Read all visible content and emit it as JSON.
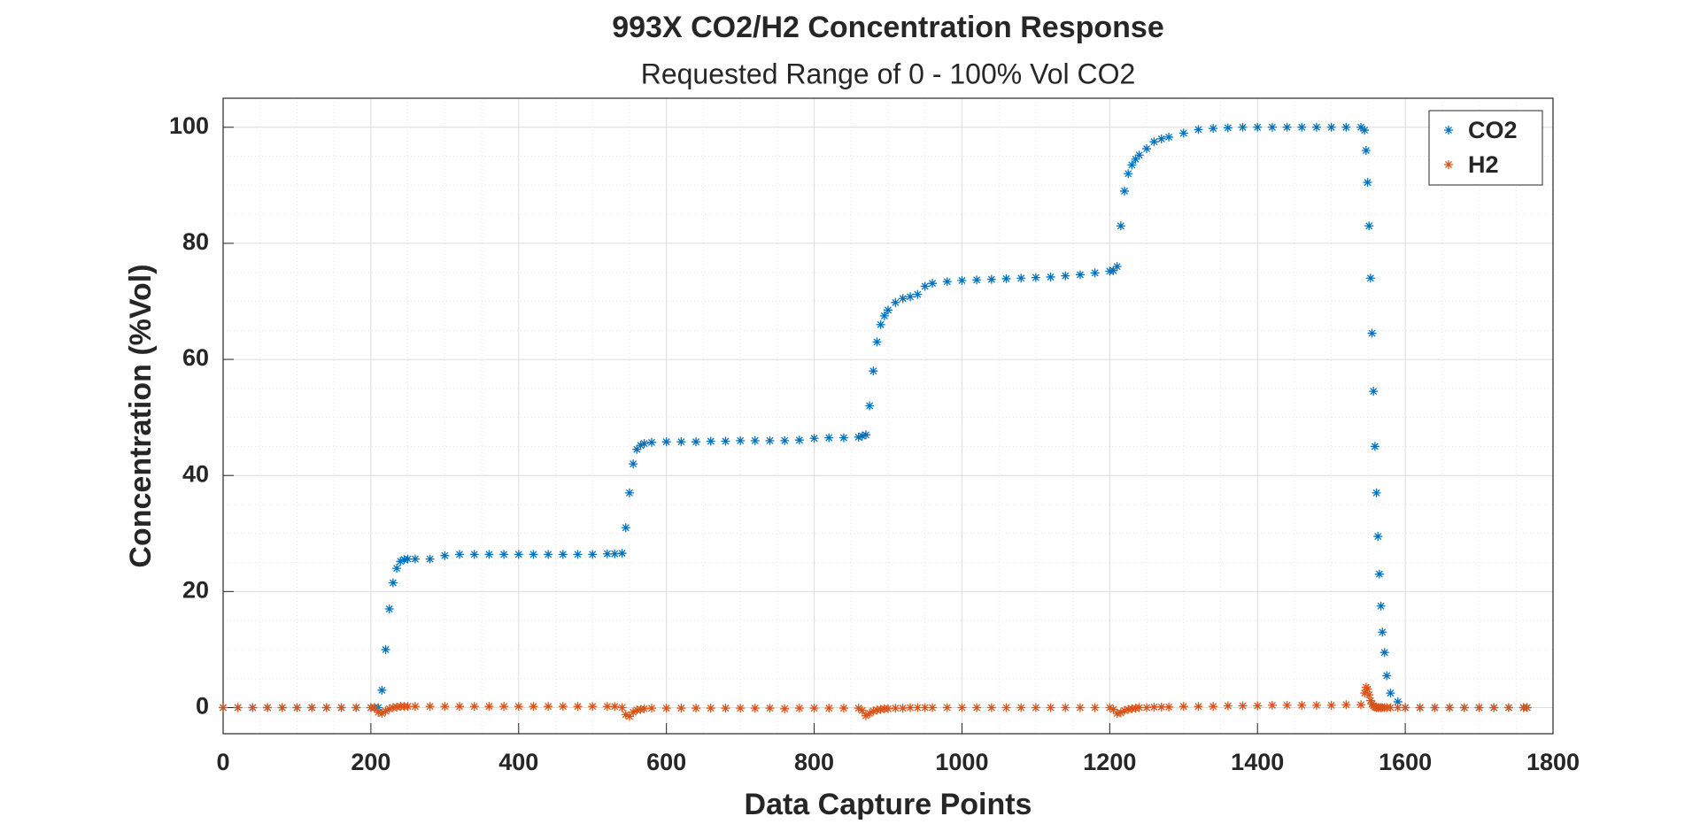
{
  "chart_data": {
    "type": "scatter",
    "title": "993X CO2/H2 Concentration Response",
    "subtitle": "Requested Range of 0 - 100% Vol CO2",
    "x_label": "Data Capture Points",
    "y_label": "Concentration (%Vol)",
    "x": [
      0,
      20,
      40,
      60,
      80,
      100,
      120,
      140,
      160,
      180,
      200,
      205,
      210,
      215,
      220,
      225,
      230,
      235,
      240,
      245,
      250,
      260,
      280,
      300,
      320,
      340,
      360,
      380,
      400,
      420,
      440,
      460,
      480,
      500,
      520,
      530,
      540,
      545,
      550,
      555,
      560,
      565,
      570,
      580,
      600,
      620,
      640,
      660,
      680,
      700,
      720,
      740,
      760,
      780,
      800,
      820,
      840,
      860,
      865,
      870,
      875,
      880,
      885,
      890,
      895,
      900,
      910,
      920,
      930,
      940,
      950,
      960,
      980,
      1000,
      1020,
      1040,
      1060,
      1080,
      1100,
      1120,
      1140,
      1160,
      1180,
      1200,
      1205,
      1210,
      1215,
      1220,
      1225,
      1230,
      1235,
      1240,
      1250,
      1260,
      1270,
      1280,
      1300,
      1320,
      1340,
      1360,
      1380,
      1400,
      1420,
      1440,
      1460,
      1480,
      1500,
      1520,
      1540,
      1545,
      1547,
      1549,
      1551,
      1553,
      1555,
      1557,
      1559,
      1561,
      1563,
      1565,
      1567,
      1569,
      1572,
      1575,
      1580,
      1590,
      1600,
      1620,
      1640,
      1660,
      1680,
      1700,
      1720,
      1740,
      1760,
      1765
    ],
    "series": [
      {
        "name": "CO2",
        "color": "#0072bd",
        "values": [
          0,
          0,
          0,
          0,
          0,
          0,
          0,
          0,
          0,
          0,
          0,
          0,
          0,
          3,
          10,
          17,
          21.5,
          24,
          25.2,
          25.5,
          25.6,
          25.6,
          25.6,
          26.2,
          26.4,
          26.4,
          26.4,
          26.4,
          26.4,
          26.4,
          26.4,
          26.4,
          26.4,
          26.4,
          26.5,
          26.5,
          26.6,
          31,
          37,
          42,
          44.5,
          45.2,
          45.5,
          45.7,
          45.8,
          45.8,
          45.8,
          45.9,
          45.9,
          46,
          46,
          46,
          46,
          46.1,
          46.4,
          46.5,
          46.5,
          46.6,
          46.8,
          47,
          52,
          58,
          63,
          66,
          67.5,
          68.5,
          69.8,
          70.5,
          70.8,
          71.2,
          72.6,
          73.1,
          73.4,
          73.6,
          73.7,
          73.8,
          73.9,
          74,
          74.1,
          74.2,
          74.4,
          74.6,
          74.9,
          75.2,
          75.3,
          76,
          83,
          89,
          92,
          93.5,
          94.5,
          95.2,
          96.3,
          97.5,
          98,
          98.3,
          99,
          99.6,
          99.8,
          99.9,
          100,
          100,
          100,
          100,
          100,
          100,
          100,
          100,
          100,
          99.5,
          96,
          90.5,
          83,
          74,
          64.5,
          54.5,
          45,
          37,
          29.5,
          23,
          17.5,
          13,
          9.5,
          5.5,
          2.5,
          1,
          0,
          0,
          0,
          0,
          0,
          0,
          0,
          0,
          0,
          0
        ]
      },
      {
        "name": "H2",
        "color": "#d95319",
        "values": [
          0,
          0,
          0,
          0,
          0,
          0,
          0,
          0,
          0,
          0,
          0,
          0,
          -0.8,
          -1,
          -0.6,
          -0.2,
          0,
          0.1,
          0.2,
          0.2,
          0.2,
          0.2,
          0.2,
          0.2,
          0.2,
          0.2,
          0.2,
          0.2,
          0.2,
          0.2,
          0.2,
          0.2,
          0.2,
          0.2,
          0.2,
          0.2,
          0,
          -1.2,
          -1.5,
          -0.8,
          -0.4,
          -0.3,
          -0.2,
          -0.1,
          -0.1,
          -0.1,
          -0.1,
          -0.1,
          -0.1,
          -0.1,
          -0.1,
          -0.1,
          -0.2,
          -0.1,
          -0.1,
          -0.1,
          -0.1,
          -0.1,
          -0.5,
          -1.4,
          -1,
          -0.6,
          -0.4,
          -0.3,
          -0.2,
          -0.2,
          -0.1,
          -0.1,
          0,
          0,
          0,
          0,
          0,
          0,
          0,
          0,
          0,
          0,
          0,
          0,
          0,
          0,
          0,
          0,
          -0.3,
          -1,
          -0.9,
          -0.5,
          -0.3,
          -0.2,
          -0.1,
          0,
          0,
          0.1,
          0.1,
          0.1,
          0.2,
          0.2,
          0.2,
          0.3,
          0.3,
          0.3,
          0.4,
          0.4,
          0.4,
          0.4,
          0.4,
          0.5,
          0.5,
          2.5,
          3.5,
          3.2,
          2.2,
          1.2,
          0.6,
          0.3,
          0.1,
          0,
          0,
          0,
          0,
          0,
          0,
          0,
          0,
          0,
          0,
          0,
          0,
          0,
          0,
          0,
          0,
          0,
          0,
          0
        ]
      }
    ],
    "xlim": [
      0,
      1800
    ],
    "xticks": [
      0,
      200,
      400,
      600,
      800,
      1000,
      1200,
      1400,
      1600,
      1800
    ],
    "ylim": [
      -4.5,
      105
    ],
    "yticks": [
      0,
      20,
      40,
      60,
      80,
      100
    ],
    "grid": true,
    "minor_grid": true,
    "legend": "top-right"
  }
}
